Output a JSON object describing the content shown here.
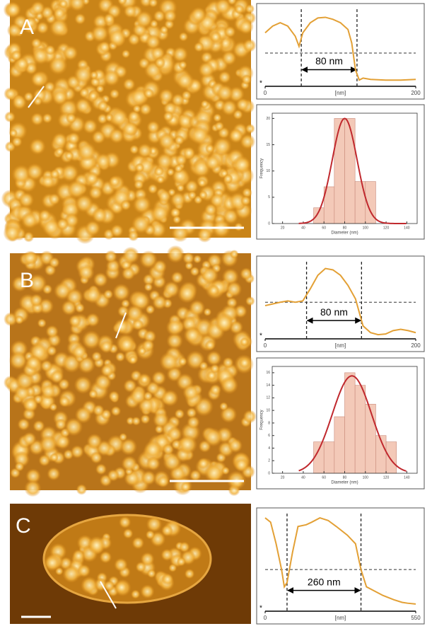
{
  "panel_labels": [
    "A",
    "B",
    "C"
  ],
  "chart_data": [
    {
      "type": "line",
      "x": [
        0,
        10,
        20,
        30,
        40,
        45,
        50,
        60,
        70,
        80,
        90,
        100,
        110,
        115,
        120,
        125,
        130,
        140,
        160,
        180,
        200
      ],
      "series": [
        {
          "color": "#e3a035",
          "values": [
            75,
            85,
            90,
            85,
            70,
            55,
            75,
            90,
            97,
            98,
            95,
            90,
            80,
            60,
            20,
            5,
            8,
            6,
            5,
            5,
            6
          ]
        }
      ],
      "xlim": [
        0,
        200
      ],
      "xticks": [
        0,
        200
      ],
      "ylim": [
        0,
        110
      ],
      "xlabel": "[nm]",
      "marker": "*",
      "hline": 45,
      "vlines": [
        48,
        122
      ],
      "annotation": "80 nm"
    },
    {
      "type": "histogram",
      "bins": [
        50,
        60,
        70,
        80,
        90,
        100,
        110
      ],
      "values": [
        3,
        7,
        20,
        20,
        8,
        8
      ],
      "color": "#f3c9b8",
      "fit": {
        "color": "#c0282d",
        "mean": 80,
        "sd": 12,
        "peak": 20
      },
      "xlim": [
        10,
        150
      ],
      "xticks": [
        20,
        40,
        60,
        80,
        100,
        120,
        140
      ],
      "ylim": [
        0,
        21
      ],
      "yticks": [
        0,
        5,
        10,
        15,
        20
      ],
      "xlabel": "Diameter (nm)",
      "ylabel": "Frequency"
    },
    {
      "type": "line",
      "x": [
        0,
        20,
        30,
        40,
        50,
        60,
        70,
        80,
        90,
        100,
        110,
        120,
        125,
        130,
        140,
        150,
        160,
        170,
        180,
        190,
        200
      ],
      "series": [
        {
          "color": "#e3a035",
          "values": [
            45,
            50,
            52,
            50,
            52,
            70,
            90,
            100,
            98,
            90,
            75,
            55,
            35,
            15,
            5,
            2,
            3,
            8,
            10,
            8,
            5
          ]
        }
      ],
      "xlim": [
        0,
        200
      ],
      "xticks": [
        0,
        200
      ],
      "ylim": [
        0,
        110
      ],
      "xlabel": "[nm]",
      "marker": "*",
      "hline": 50,
      "vlines": [
        55,
        128
      ],
      "annotation": "80 nm"
    },
    {
      "type": "histogram",
      "bins": [
        50,
        60,
        70,
        80,
        90,
        100,
        110,
        120,
        130
      ],
      "values": [
        5,
        5,
        9,
        16,
        14,
        11,
        6,
        5
      ],
      "color": "#f3c9b8",
      "fit": {
        "color": "#c0282d",
        "mean": 87,
        "sd": 19,
        "peak": 15.5
      },
      "xlim": [
        10,
        150
      ],
      "xticks": [
        20,
        40,
        60,
        80,
        100,
        120,
        140
      ],
      "ylim": [
        0,
        17
      ],
      "yticks": [
        0,
        2,
        4,
        6,
        8,
        10,
        12,
        14,
        16
      ],
      "xlabel": "Diameter (nm)",
      "ylabel": "Frequency"
    },
    {
      "type": "line",
      "x": [
        0,
        20,
        40,
        60,
        70,
        80,
        100,
        120,
        150,
        170,
        200,
        230,
        260,
        300,
        330,
        350,
        370,
        400,
        430,
        470,
        500,
        520,
        550
      ],
      "series": [
        {
          "color": "#e3a035",
          "values": [
            100,
            95,
            70,
            40,
            20,
            25,
            60,
            90,
            92,
            95,
            100,
            97,
            90,
            80,
            70,
            40,
            20,
            15,
            10,
            5,
            2,
            1,
            0
          ]
        }
      ],
      "xlim": [
        0,
        550
      ],
      "xticks": [
        0,
        550
      ],
      "ylim": [
        -5,
        105
      ],
      "xlabel": "[nm]",
      "marker": "*",
      "hline": 40,
      "vlines": [
        80,
        350
      ],
      "annotation": "260 nm"
    }
  ]
}
